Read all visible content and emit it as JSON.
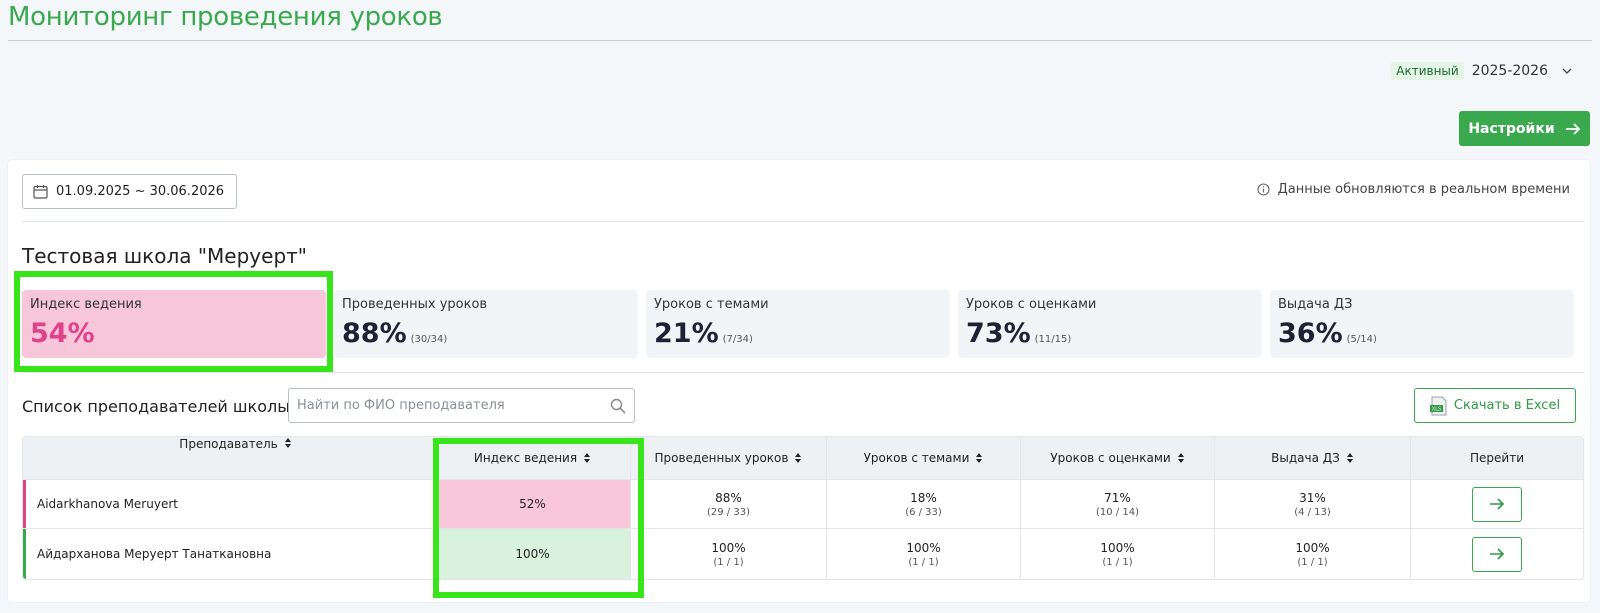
{
  "header": {
    "title": "Мониторинг проведения уроков",
    "active_badge": "Активный",
    "year": "2025-2026",
    "settings_label": "Настройки"
  },
  "filters": {
    "date_range": "01.09.2025 ~ 30.06.2026",
    "realtime_note": "Данные обновляются в реальном времени"
  },
  "school": {
    "name": "Тестовая школа \"Меруерт\""
  },
  "stats": [
    {
      "label": "Индекс ведения",
      "value": "54%",
      "sub": ""
    },
    {
      "label": "Проведенных уроков",
      "value": "88%",
      "sub": "(30/34)"
    },
    {
      "label": "Уроков с темами",
      "value": "21%",
      "sub": "(7/34)"
    },
    {
      "label": "Уроков с оценками",
      "value": "73%",
      "sub": "(11/15)"
    },
    {
      "label": "Выдача ДЗ",
      "value": "36%",
      "sub": "(5/14)"
    }
  ],
  "teachers": {
    "title": "Список преподавателей школы",
    "search_placeholder": "Найти по ФИО преподавателя",
    "excel_label": "Скачать в Excel",
    "columns": [
      "Преподаватель",
      "Индекс ведения",
      "Проведенных уроков",
      "Уроков с темами",
      "Уроков с оценками",
      "Выдача ДЗ",
      "Перейти"
    ],
    "rows": [
      {
        "name": "Aidarkhanova Meruyert",
        "index": "52%",
        "conducted": "88%",
        "conducted_sub": "(29 / 33)",
        "topics": "18%",
        "topics_sub": "(6 / 33)",
        "grades": "71%",
        "grades_sub": "(10 / 14)",
        "homework": "31%",
        "homework_sub": "(4 / 13)"
      },
      {
        "name": "Айдарханова Меруерт Танаткановна",
        "index": "100%",
        "conducted": "100%",
        "conducted_sub": "(1 / 1)",
        "topics": "100%",
        "topics_sub": "(1 / 1)",
        "grades": "100%",
        "grades_sub": "(1 / 1)",
        "homework": "100%",
        "homework_sub": "(1 / 1)"
      }
    ]
  },
  "colors": {
    "brand_green": "#3aa94e",
    "highlight_green": "#37e51a",
    "pink": "#f7c6d9",
    "pink_text": "#e0418b"
  }
}
